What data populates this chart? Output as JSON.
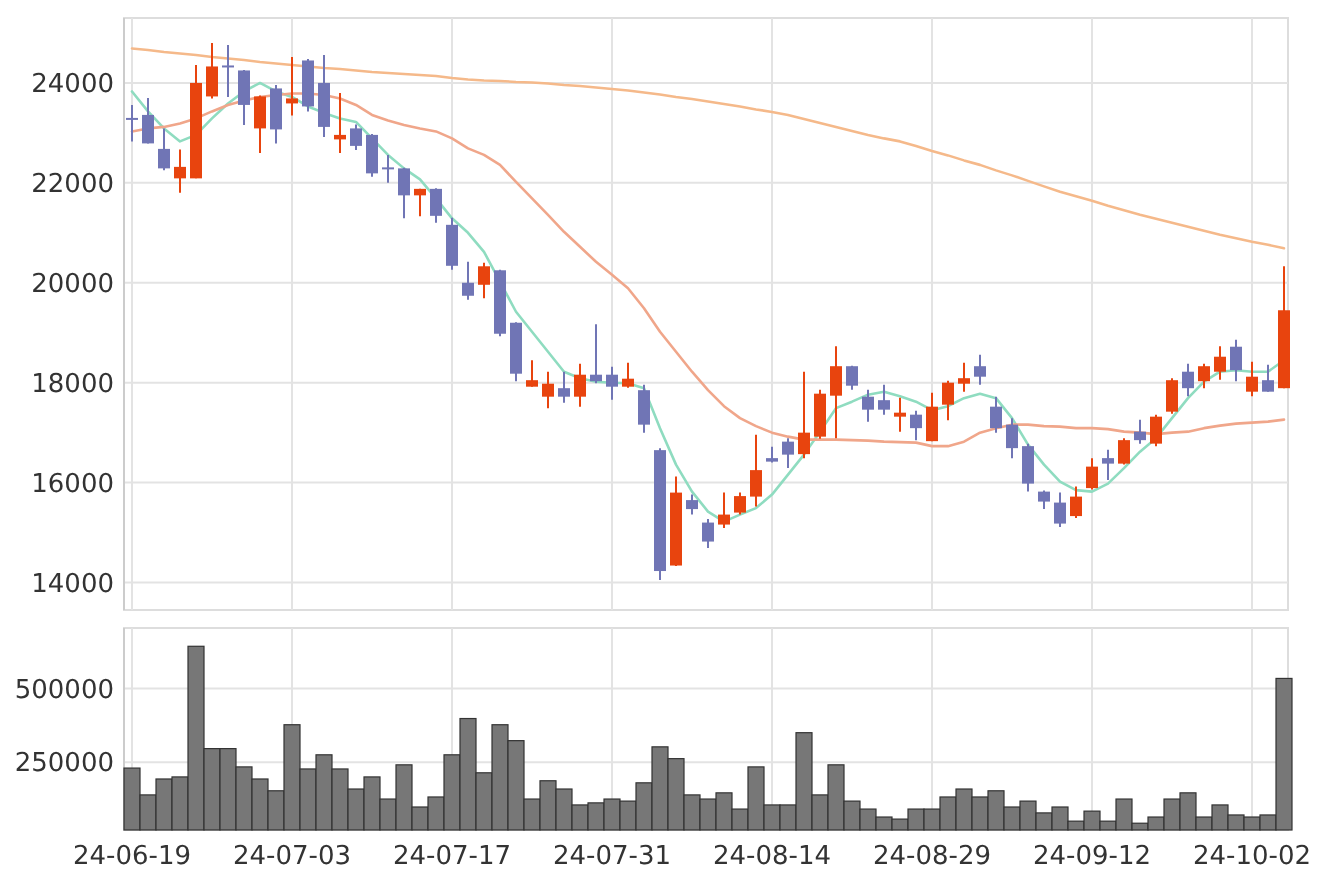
{
  "chart_data": [
    {
      "type": "candlestick",
      "categories": [
        null,
        null,
        null,
        null,
        null,
        null,
        null,
        null,
        null,
        null,
        null,
        null,
        null,
        null,
        null,
        null,
        null,
        null,
        null,
        null,
        null,
        null,
        null,
        null,
        null,
        null,
        null,
        null,
        null,
        null,
        null,
        null,
        null,
        null,
        null,
        null,
        null,
        null,
        null,
        null,
        null,
        null,
        null,
        null,
        null,
        null,
        null,
        null,
        null,
        null,
        null,
        null,
        null,
        null,
        null,
        null,
        null,
        null,
        null,
        null,
        null,
        null,
        null,
        null,
        null,
        null,
        null,
        null,
        null,
        null,
        null,
        null,
        null
      ],
      "ohlc": [
        [
          23300,
          23560,
          22830,
          23260
        ],
        [
          23360,
          23700,
          22790,
          22790
        ],
        [
          22680,
          23090,
          22250,
          22290
        ],
        [
          22090,
          22670,
          21800,
          22320
        ],
        [
          22090,
          24360,
          22090,
          24000
        ],
        [
          23730,
          24800,
          23690,
          24330
        ],
        [
          24350,
          24760,
          23720,
          24320
        ],
        [
          24250,
          24260,
          23160,
          23560
        ],
        [
          23090,
          23750,
          22600,
          23730
        ],
        [
          23890,
          23960,
          22790,
          23070
        ],
        [
          23590,
          24520,
          23350,
          23690
        ],
        [
          24450,
          24480,
          23430,
          23530
        ],
        [
          24000,
          24560,
          22920,
          23120
        ],
        [
          22870,
          23800,
          22600,
          22960
        ],
        [
          23090,
          23170,
          22660,
          22740
        ],
        [
          22960,
          22980,
          22120,
          22190
        ],
        [
          22310,
          22560,
          22000,
          22280
        ],
        [
          22290,
          22300,
          21290,
          21750
        ],
        [
          21750,
          21880,
          21330,
          21880
        ],
        [
          21880,
          21890,
          21200,
          21340
        ],
        [
          21160,
          21300,
          20260,
          20340
        ],
        [
          20000,
          20420,
          19660,
          19740
        ],
        [
          19960,
          20400,
          19690,
          20330
        ],
        [
          20250,
          20260,
          18930,
          18980
        ],
        [
          19200,
          19210,
          18030,
          18180
        ],
        [
          17920,
          18450,
          17920,
          18050
        ],
        [
          17720,
          18220,
          17490,
          17980
        ],
        [
          17890,
          18220,
          17600,
          17720
        ],
        [
          17720,
          18380,
          17520,
          18160
        ],
        [
          18160,
          19170,
          17990,
          18030
        ],
        [
          18160,
          18320,
          17660,
          17920
        ],
        [
          17920,
          18400,
          17900,
          18080
        ],
        [
          17850,
          17960,
          17000,
          17160
        ],
        [
          16650,
          16690,
          14050,
          14230
        ],
        [
          14340,
          16120,
          14330,
          15800
        ],
        [
          15650,
          15760,
          15360,
          15470
        ],
        [
          15200,
          15270,
          14690,
          14820
        ],
        [
          15160,
          15800,
          15090,
          15360
        ],
        [
          15400,
          15800,
          15360,
          15730
        ],
        [
          15720,
          16960,
          15520,
          16250
        ],
        [
          16490,
          16720,
          16400,
          16420
        ],
        [
          16820,
          16890,
          16290,
          16560
        ],
        [
          16570,
          18220,
          16490,
          17000
        ],
        [
          16920,
          17860,
          16880,
          17780
        ],
        [
          17740,
          18730,
          16890,
          18330
        ],
        [
          18330,
          18340,
          17860,
          17940
        ],
        [
          17720,
          17860,
          17220,
          17460
        ],
        [
          17650,
          17960,
          17360,
          17460
        ],
        [
          17320,
          17700,
          17020,
          17400
        ],
        [
          17360,
          17440,
          16850,
          17090
        ],
        [
          16830,
          17800,
          16830,
          17520
        ],
        [
          17560,
          18040,
          17250,
          18000
        ],
        [
          17980,
          18400,
          17820,
          18090
        ],
        [
          18330,
          18560,
          17960,
          18120
        ],
        [
          17520,
          17720,
          17000,
          17090
        ],
        [
          17160,
          17290,
          16490,
          16690
        ],
        [
          16730,
          16780,
          15820,
          15980
        ],
        [
          15820,
          15840,
          15470,
          15620
        ],
        [
          15600,
          15800,
          15110,
          15180
        ],
        [
          15330,
          15920,
          15290,
          15720
        ],
        [
          15890,
          16490,
          15860,
          16320
        ],
        [
          16490,
          16660,
          16050,
          16380
        ],
        [
          16380,
          16890,
          16360,
          16850
        ],
        [
          17020,
          17260,
          16780,
          16850
        ],
        [
          16780,
          17360,
          16730,
          17320
        ],
        [
          17420,
          18090,
          17380,
          18050
        ],
        [
          18220,
          18380,
          17730,
          17890
        ],
        [
          18030,
          18380,
          17890,
          18330
        ],
        [
          18220,
          18730,
          18060,
          18520
        ],
        [
          18720,
          18860,
          18030,
          18250
        ],
        [
          17820,
          18420,
          17730,
          18120
        ],
        [
          18050,
          18360,
          17820,
          17820
        ],
        [
          17890,
          20330,
          17890,
          19450
        ]
      ],
      "colors": [
        "#7075b5",
        "#7075b5",
        "#7075b5",
        "#e8440e",
        "#e8440e",
        "#e8440e",
        "#7075b5",
        "#7075b5",
        "#e8440e",
        "#7075b5",
        "#e8440e",
        "#7075b5",
        "#7075b5",
        "#e8440e",
        "#7075b5",
        "#7075b5",
        "#7075b5",
        "#7075b5",
        "#e8440e",
        "#7075b5",
        "#7075b5",
        "#7075b5",
        "#e8440e",
        "#7075b5",
        "#7075b5",
        "#e8440e",
        "#e8440e",
        "#7075b5",
        "#e8440e",
        "#7075b5",
        "#7075b5",
        "#e8440e",
        "#7075b5",
        "#7075b5",
        "#e8440e",
        "#7075b5",
        "#7075b5",
        "#e8440e",
        "#e8440e",
        "#e8440e",
        "#7075b5",
        "#7075b5",
        "#e8440e",
        "#e8440e",
        "#e8440e",
        "#7075b5",
        "#7075b5",
        "#7075b5",
        "#e8440e",
        "#7075b5",
        "#e8440e",
        "#e8440e",
        "#e8440e",
        "#7075b5",
        "#7075b5",
        "#7075b5",
        "#7075b5",
        "#7075b5",
        "#7075b5",
        "#e8440e",
        "#e8440e",
        "#7075b5",
        "#e8440e",
        "#7075b5",
        "#e8440e",
        "#e8440e",
        "#7075b5",
        "#e8440e",
        "#e8440e",
        "#7075b5",
        "#e8440e",
        "#7075b5",
        "#e8440e"
      ],
      "series": [
        {
          "type": "line",
          "color": "#8fdcc0",
          "values": [
            23830,
            23430,
            23090,
            22830,
            22960,
            23290,
            23590,
            23830,
            24000,
            23830,
            23720,
            23530,
            23400,
            23290,
            23220,
            22890,
            22560,
            22290,
            22070,
            21690,
            21290,
            21000,
            20620,
            null,
            19420,
            19020,
            18620,
            18220,
            18090,
            18020,
            18000,
            17990,
            17890,
            17090,
            16360,
            15820,
            15420,
            15220,
            15360,
            15490,
            15760,
            16160,
            16560,
            17020,
            17490,
            17620,
            17760,
            17820,
            17730,
            17620,
            17450,
            17530,
            17690,
            17780,
            17690,
            17290,
            16760,
            16360,
            16020,
            15850,
            15820,
            15980,
            16290,
            16620,
            16890,
            17290,
            17690,
            18020,
            18220,
            18250,
            18220,
            18220,
            18450
          ]
        },
        {
          "type": "line",
          "color": "#f0a68a",
          "values": [
            23030,
            23090,
            23120,
            23190,
            23290,
            23430,
            23560,
            23650,
            23720,
            23760,
            23790,
            23790,
            23760,
            23690,
            23560,
            23360,
            23250,
            23160,
            23090,
            23030,
            22890,
            22690,
            22560,
            22360,
            22020,
            21690,
            21360,
            21020,
            20720,
            20420,
            20160,
            19890,
            19490,
            19020,
            18620,
            18220,
            17850,
            17530,
            17290,
            17130,
            17000,
            16920,
            16860,
            16860,
            16860,
            16850,
            16840,
            16820,
            16810,
            16800,
            16730,
            16730,
            16820,
            17000,
            17090,
            17160,
            17160,
            17130,
            17120,
            17090,
            17090,
            17070,
            17020,
            17000,
            16970,
            17000,
            17020,
            17090,
            17140,
            17180,
            17200,
            17220,
            17260
          ]
        },
        {
          "type": "line",
          "color": "#f5b98a",
          "values": [
            24690,
            24660,
            24620,
            24590,
            24560,
            24520,
            24490,
            24460,
            24420,
            24390,
            24360,
            24330,
            24300,
            24280,
            24250,
            24220,
            24200,
            24180,
            24160,
            24140,
            24100,
            24070,
            24050,
            24040,
            24020,
            24010,
            23990,
            23960,
            23940,
            23910,
            23880,
            23850,
            23810,
            23770,
            23720,
            23680,
            23630,
            23580,
            23530,
            23470,
            23420,
            23360,
            23280,
            23200,
            23120,
            23040,
            22960,
            22890,
            22830,
            22740,
            22640,
            22550,
            22450,
            22360,
            22250,
            22150,
            22040,
            21930,
            21820,
            21730,
            21640,
            21540,
            21450,
            21360,
            21280,
            21200,
            21120,
            21040,
            20960,
            20890,
            20820,
            20760,
            20690
          ]
        }
      ],
      "ylim": [
        13450,
        25300
      ],
      "yticks": [
        14000,
        16000,
        18000,
        20000,
        22000,
        24000
      ],
      "grid": true,
      "tick_labels": "y"
    },
    {
      "type": "bar",
      "categories": [
        "24-06-19",
        null,
        null,
        null,
        null,
        null,
        null,
        null,
        null,
        null,
        "24-07-03",
        null,
        null,
        null,
        null,
        null,
        null,
        null,
        null,
        null,
        "24-07-17",
        null,
        null,
        null,
        null,
        null,
        null,
        null,
        null,
        null,
        "24-07-31",
        null,
        null,
        null,
        null,
        null,
        null,
        null,
        null,
        null,
        "24-08-14",
        null,
        null,
        null,
        null,
        null,
        null,
        null,
        null,
        null,
        "24-08-29",
        null,
        null,
        null,
        null,
        null,
        null,
        null,
        null,
        null,
        "24-09-12",
        null,
        null,
        null,
        null,
        null,
        null,
        null,
        null,
        null,
        "24-10-02",
        null,
        null
      ],
      "values": [
        230000,
        139000,
        193000,
        200000,
        643000,
        296000,
        296000,
        234000,
        193000,
        153000,
        377000,
        227000,
        275000,
        227000,
        159000,
        200000,
        125000,
        241000,
        98000,
        132000,
        275000,
        398000,
        214000,
        377000,
        323000,
        125000,
        187000,
        159000,
        105000,
        112000,
        125000,
        118000,
        180000,
        302000,
        262000,
        139000,
        125000,
        146000,
        91000,
        234000,
        105000,
        105000,
        350000,
        139000,
        241000,
        118000,
        91000,
        64000,
        57000,
        91000,
        91000,
        132000,
        159000,
        132000,
        153000,
        98000,
        118000,
        78000,
        98000,
        50000,
        84000,
        50000,
        125000,
        43000,
        64000,
        125000,
        146000,
        64000,
        105000,
        71000,
        64000,
        71000,
        534000
      ],
      "color": "#777777",
      "ylim": [
        20000,
        705000
      ],
      "yticks": [
        250000,
        500000
      ],
      "grid": true
    }
  ]
}
